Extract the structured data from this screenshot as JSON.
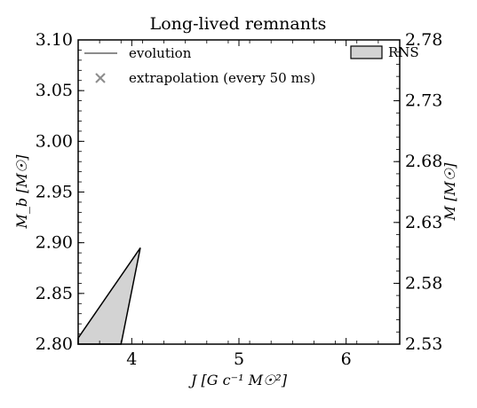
{
  "chart_data": {
    "type": "area",
    "title": "Long-lived remnants",
    "xlabel": "J [G c⁻¹ M☉²]",
    "ylabel": "M_b [M☉]",
    "y2label": "M [M☉]",
    "xlim": [
      3.5,
      6.5
    ],
    "ylim": [
      2.8,
      3.1
    ],
    "y2lim": [
      2.53,
      2.78
    ],
    "xticks": [
      "4",
      "5",
      "6"
    ],
    "xtick_values": [
      4,
      5,
      6
    ],
    "yticks": [
      "2.80",
      "2.85",
      "2.90",
      "2.95",
      "3.00",
      "3.05",
      "3.10"
    ],
    "ytick_values": [
      2.8,
      2.85,
      2.9,
      2.95,
      3.0,
      3.05,
      3.1
    ],
    "y2ticks": [
      "2.53",
      "2.58",
      "2.63",
      "2.68",
      "2.73",
      "2.78"
    ],
    "y2tick_values": [
      2.53,
      2.58,
      2.63,
      2.68,
      2.73,
      2.78
    ],
    "grid": false,
    "legend": {
      "left": {
        "placement": "top-left",
        "entries": [
          {
            "label": "evolution",
            "marker": "line",
            "color": "#8c8c8c"
          },
          {
            "label": "extrapolation (every 50 ms)",
            "marker": "x",
            "color": "#8c8c8c"
          }
        ]
      },
      "right": {
        "placement": "top-right",
        "entries": [
          {
            "label": "RNS",
            "marker": "patch",
            "color": "#d3d3d3"
          }
        ]
      }
    },
    "series": [
      {
        "name": "RNS",
        "kind": "filled-polygon",
        "fill": "#d3d3d3",
        "edge": "#000000",
        "points": [
          {
            "x": 3.5,
            "y": 2.806
          },
          {
            "x": 4.08,
            "y": 2.895
          },
          {
            "x": 3.9,
            "y": 2.8
          },
          {
            "x": 3.5,
            "y": 2.8
          }
        ]
      }
    ]
  }
}
